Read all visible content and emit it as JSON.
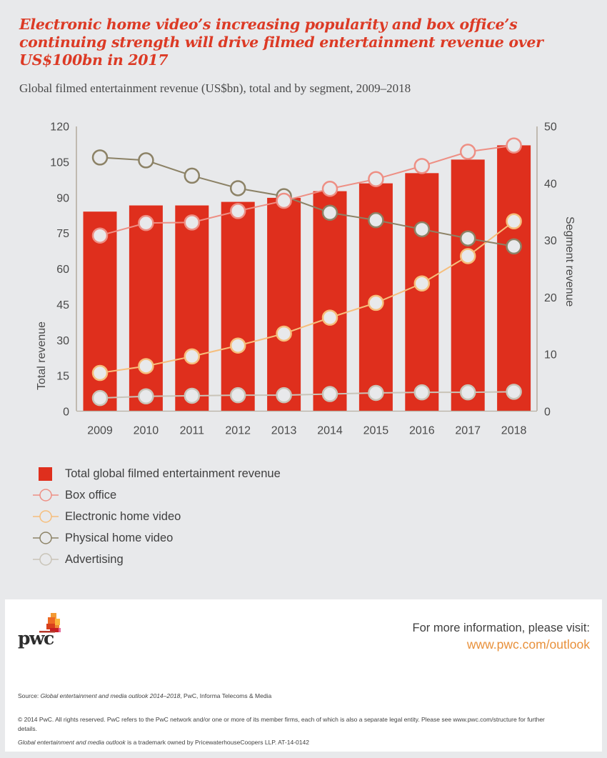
{
  "header": {
    "title": "Electronic home video’s increasing popularity and box office’s continuing strength will drive filmed entertainment revenue over US$100bn in 2017",
    "subtitle": "Global filmed entertainment revenue (US$bn), total and by segment, 2009–2018"
  },
  "colors": {
    "bar": "#df2f1d",
    "box_office": "#ee8f84",
    "electronic_home_video": "#f6be7c",
    "physical_home_video": "#8c8266",
    "advertising": "#c9c4b8",
    "background": "#e8e9eb",
    "title": "#dc3a25",
    "link": "#e8903a"
  },
  "chart_data": {
    "type": "bar",
    "title": "Global filmed entertainment revenue (US$bn), total and by segment, 2009–2018",
    "categories": [
      "2009",
      "2010",
      "2011",
      "2012",
      "2013",
      "2014",
      "2015",
      "2016",
      "2017",
      "2018"
    ],
    "ylabel": "Total revenue",
    "y2label": "Segment revenue",
    "ylim": [
      0,
      120
    ],
    "yticks": [
      0,
      15,
      30,
      45,
      60,
      75,
      90,
      105,
      120
    ],
    "y2lim": [
      0,
      50
    ],
    "y2ticks": [
      0,
      10,
      20,
      30,
      40,
      50
    ],
    "grid": false,
    "legend_position": "bottom-left",
    "series": [
      {
        "name": "Total global filmed entertainment revenue",
        "type": "bar",
        "axis": "left",
        "values": [
          84.0,
          86.6,
          86.6,
          88.1,
          89.8,
          92.6,
          95.9,
          100.2,
          105.9,
          111.9
        ]
      },
      {
        "name": "Box office",
        "type": "line",
        "axis": "right",
        "values": [
          30.8,
          33.0,
          33.1,
          35.1,
          36.9,
          39.0,
          40.7,
          43.0,
          45.5,
          46.6
        ]
      },
      {
        "name": "Electronic home video",
        "type": "line",
        "axis": "right",
        "values": [
          6.7,
          7.9,
          9.6,
          11.5,
          13.6,
          16.4,
          19.0,
          22.4,
          27.2,
          33.3
        ]
      },
      {
        "name": "Physical home video",
        "type": "line",
        "axis": "right",
        "values": [
          44.5,
          44.0,
          41.3,
          39.1,
          37.7,
          34.8,
          33.5,
          31.9,
          30.3,
          28.9
        ]
      },
      {
        "name": "Advertising",
        "type": "line",
        "axis": "right",
        "values": [
          2.3,
          2.6,
          2.7,
          2.8,
          2.8,
          3.0,
          3.2,
          3.3,
          3.3,
          3.4
        ]
      }
    ]
  },
  "legend": [
    {
      "label": "Total global filmed entertainment revenue",
      "icon": "square"
    },
    {
      "label": "Box office",
      "icon": "line-circle"
    },
    {
      "label": "Electronic home video",
      "icon": "line-circle"
    },
    {
      "label": "Physical home video",
      "icon": "line-circle"
    },
    {
      "label": "Advertising",
      "icon": "line-circle"
    }
  ],
  "footer": {
    "logo_text": "pwc",
    "more_info": "For more information, please visit:",
    "link": "www.pwc.com/outlook",
    "source_label": "Source: ",
    "source_title": "Global entertainment and media outlook 2014–2018",
    "source_rest": ", PwC, Informa Telecoms & Media",
    "copyright": "© 2014 PwC. All rights reserved. PwC refers to the PwC network and/or one or more of its member firms, each of which is also a separate legal entity. Please see www.pwc.com/structure for further details.",
    "trademark_title": "Global entertainment and media outlook",
    "trademark_rest": " is a trademark owned by PricewaterhouseCoopers LLP. AT-14-0142"
  }
}
